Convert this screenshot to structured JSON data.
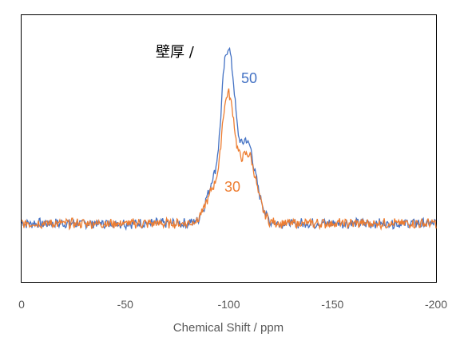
{
  "chart_data": {
    "type": "line",
    "title": "",
    "xlabel": "Chemical Shift / ppm",
    "ylabel": "",
    "xlim": [
      0,
      -200
    ],
    "x_reversed": true,
    "xticks": [
      0,
      -50,
      -100,
      -150,
      -200
    ],
    "xtick_labels": [
      "0",
      "-50",
      "-100",
      "-150",
      "-200"
    ],
    "ylim": [
      -0.35,
      1.25
    ],
    "grid": false,
    "legend": "none",
    "annotation": "壁厚 /",
    "series": [
      {
        "name": "50",
        "color": "#4472C4",
        "x": [
          0,
          -10,
          -20,
          -30,
          -40,
          -50,
          -60,
          -70,
          -80,
          -85,
          -88,
          -90,
          -92,
          -94,
          -95,
          -96,
          -97,
          -98,
          -99,
          -100,
          -101,
          -102,
          -103,
          -104,
          -105,
          -106,
          -107,
          -108,
          -109,
          -110,
          -111,
          -112,
          -114,
          -116,
          -118,
          -120,
          -125,
          -130,
          -140,
          -150,
          -160,
          -170,
          -180,
          -190,
          -200
        ],
        "y": [
          0.0,
          0.0,
          0.0,
          0.0,
          0.0,
          0.0,
          0.0,
          0.0,
          0.0,
          0.02,
          0.1,
          0.18,
          0.26,
          0.35,
          0.45,
          0.62,
          0.82,
          0.97,
          1.03,
          1.05,
          1.0,
          0.88,
          0.73,
          0.6,
          0.5,
          0.48,
          0.49,
          0.5,
          0.49,
          0.47,
          0.42,
          0.35,
          0.22,
          0.12,
          0.05,
          0.01,
          0.0,
          0.0,
          0.0,
          0.0,
          0.0,
          0.0,
          0.0,
          0.0,
          0.0
        ]
      },
      {
        "name": "30",
        "color": "#ED7D31",
        "x": [
          0,
          -10,
          -20,
          -30,
          -40,
          -50,
          -60,
          -70,
          -80,
          -85,
          -88,
          -90,
          -92,
          -94,
          -95,
          -96,
          -97,
          -98,
          -99,
          -100,
          -101,
          -102,
          -103,
          -104,
          -105,
          -106,
          -107,
          -108,
          -109,
          -110,
          -111,
          -112,
          -114,
          -116,
          -118,
          -120,
          -125,
          -130,
          -140,
          -150,
          -160,
          -170,
          -180,
          -190,
          -200
        ],
        "y": [
          0.0,
          0.0,
          0.0,
          0.0,
          0.0,
          0.0,
          0.0,
          0.0,
          0.0,
          0.02,
          0.09,
          0.15,
          0.21,
          0.27,
          0.33,
          0.45,
          0.6,
          0.71,
          0.76,
          0.78,
          0.74,
          0.65,
          0.55,
          0.46,
          0.41,
          0.4,
          0.4,
          0.41,
          0.42,
          0.41,
          0.38,
          0.32,
          0.2,
          0.1,
          0.04,
          0.01,
          0.0,
          0.0,
          0.0,
          0.0,
          0.0,
          0.0,
          0.0,
          0.0,
          0.0
        ]
      }
    ]
  }
}
